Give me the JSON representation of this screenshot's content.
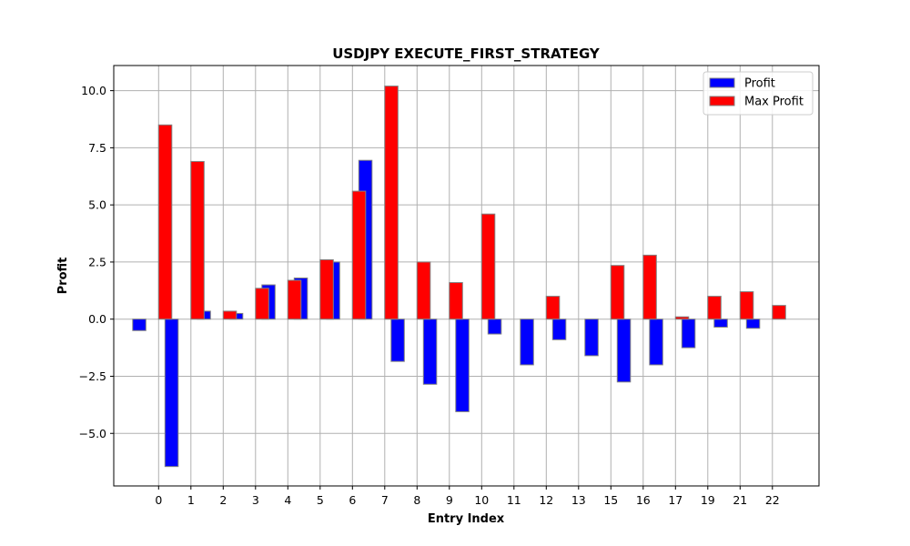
{
  "chart_data": {
    "type": "bar",
    "title": "USDJPY EXECUTE_FIRST_STRATEGY",
    "xlabel": "Entry Index",
    "ylabel": "Profit",
    "categories": [
      "0",
      "1",
      "2",
      "3",
      "4",
      "5",
      "6",
      "7",
      "8",
      "9",
      "10",
      "11",
      "12",
      "13",
      "15",
      "16",
      "17",
      "19",
      "21",
      "22"
    ],
    "series": [
      {
        "name": "Profit",
        "color": "#0000ff",
        "values": [
          -0.5,
          -6.45,
          0.35,
          0.25,
          1.5,
          1.8,
          2.5,
          6.95,
          -1.85,
          -2.85,
          -4.05,
          -0.65,
          -2.0,
          -0.9,
          -1.6,
          -2.75,
          -2.0,
          -1.25,
          -0.35,
          -0.4
        ]
      },
      {
        "name": "Max Profit",
        "color": "#ff0000",
        "values": [
          8.5,
          6.9,
          0.35,
          1.35,
          1.7,
          2.6,
          5.6,
          10.2,
          2.5,
          1.6,
          4.6,
          0.0,
          1.0,
          0.0,
          2.35,
          2.8,
          0.1,
          1.0,
          1.2,
          0.6
        ]
      }
    ],
    "ylim": [
      -7.3,
      11.1
    ],
    "yticks": [
      -5.0,
      -2.5,
      0.0,
      2.5,
      5.0,
      7.5,
      10.0
    ],
    "ytick_labels": [
      "−5.0",
      "−2.5",
      "0.0",
      "2.5",
      "5.0",
      "7.5",
      "10.0"
    ],
    "grid": true,
    "legend": "top-right"
  }
}
